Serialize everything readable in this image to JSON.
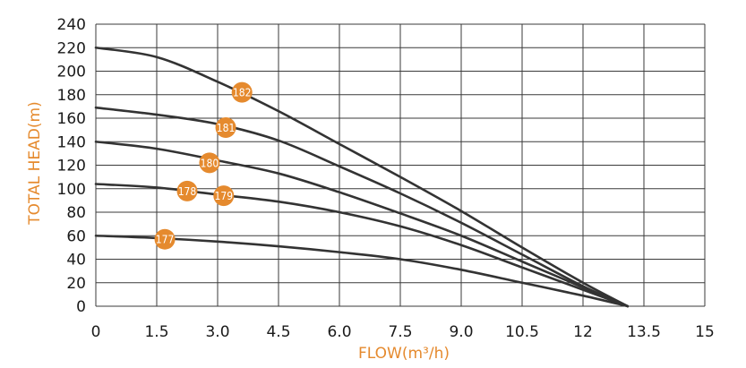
{
  "colors": {
    "curve": "#333333",
    "badge": "#e58a2e",
    "axis_title": "#e58a2e",
    "grid": "#3a3a3a",
    "tick_text": "#1a1a1a"
  },
  "chart_data": {
    "type": "line",
    "title": "",
    "xlabel": "FLOW(m³/h)",
    "ylabel": "TOTAL HEAD(m)",
    "xlim": [
      0,
      15
    ],
    "ylim": [
      0,
      240
    ],
    "x_ticks": [
      "0",
      "1.5",
      "3.0",
      "4.5",
      "6.0",
      "7.5",
      "9.0",
      "10.5",
      "12",
      "13.5",
      "15"
    ],
    "y_ticks": [
      "0",
      "20",
      "40",
      "60",
      "80",
      "100",
      "120",
      "140",
      "160",
      "180",
      "200",
      "220",
      "240"
    ],
    "grid": true,
    "series": [
      {
        "name": "182",
        "label_x": 3.6,
        "label_y": 182,
        "points": [
          [
            0,
            220
          ],
          [
            1.5,
            212
          ],
          [
            3.0,
            191
          ],
          [
            4.5,
            166
          ],
          [
            6.0,
            138
          ],
          [
            7.5,
            110
          ],
          [
            9.0,
            81
          ],
          [
            10.5,
            50
          ],
          [
            12,
            20
          ],
          [
            13.1,
            0
          ]
        ]
      },
      {
        "name": "181",
        "label_x": 3.2,
        "label_y": 152,
        "points": [
          [
            0,
            169
          ],
          [
            1.5,
            163
          ],
          [
            3.0,
            155
          ],
          [
            4.5,
            141
          ],
          [
            6.0,
            119
          ],
          [
            7.5,
            96
          ],
          [
            9.0,
            71
          ],
          [
            10.5,
            44
          ],
          [
            12,
            17
          ],
          [
            13.1,
            0
          ]
        ]
      },
      {
        "name": "180",
        "label_x": 2.8,
        "label_y": 122,
        "points": [
          [
            0,
            140
          ],
          [
            1.5,
            134
          ],
          [
            3.0,
            124
          ],
          [
            4.5,
            113
          ],
          [
            6.0,
            97
          ],
          [
            7.5,
            79
          ],
          [
            9.0,
            60
          ],
          [
            10.5,
            38
          ],
          [
            12,
            16
          ],
          [
            13.1,
            0
          ]
        ]
      },
      {
        "name": "178",
        "label_x": 2.25,
        "label_y": 98,
        "points": [
          [
            0,
            104
          ],
          [
            1.5,
            101
          ],
          [
            3.0,
            95
          ],
          [
            4.5,
            89
          ],
          [
            6.0,
            80
          ],
          [
            7.5,
            68
          ],
          [
            9.0,
            52
          ],
          [
            10.5,
            33
          ],
          [
            12,
            14
          ],
          [
            13.1,
            0
          ]
        ]
      },
      {
        "name": "179",
        "label_x": 3.15,
        "label_y": 94,
        "points": []
      },
      {
        "name": "177",
        "label_x": 1.7,
        "label_y": 57,
        "points": [
          [
            0,
            60
          ],
          [
            1.5,
            58
          ],
          [
            3.0,
            55
          ],
          [
            4.5,
            51
          ],
          [
            6.0,
            46
          ],
          [
            7.5,
            40
          ],
          [
            9.0,
            31
          ],
          [
            10.5,
            20
          ],
          [
            12,
            9
          ],
          [
            13.1,
            0
          ]
        ]
      }
    ]
  }
}
